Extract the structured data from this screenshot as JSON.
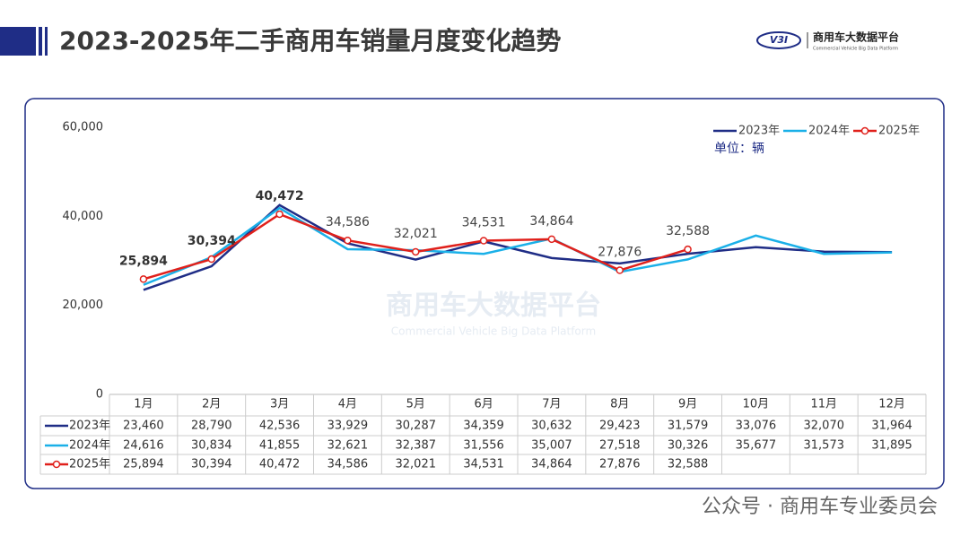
{
  "header": {
    "title": "2023-2025年二手商用车销量月度变化趋势",
    "logo_mark": "V3I",
    "logo_name": "商用车大数据平台",
    "logo_sub": "Commercial Vehicle Big Data Platform"
  },
  "chart_data": {
    "type": "line",
    "unit": "单位：辆",
    "watermark": "商用车大数据平台",
    "watermark_sub": "Commercial Vehicle Big Data Platform",
    "categories": [
      "1月",
      "2月",
      "3月",
      "4月",
      "5月",
      "6月",
      "7月",
      "8月",
      "9月",
      "10月",
      "11月",
      "12月"
    ],
    "series": [
      {
        "name": "2023年",
        "color": "#1f2d86",
        "values": [
          23460,
          28790,
          42536,
          33929,
          30287,
          34359,
          30632,
          29423,
          31579,
          33076,
          32070,
          31964
        ],
        "value_labels": [
          "23,460",
          "28,790",
          "42,536",
          "33,929",
          "30,287",
          "34,359",
          "30,632",
          "29,423",
          "31,579",
          "33,076",
          "32,070",
          "31,964"
        ]
      },
      {
        "name": "2024年",
        "color": "#1ab0e8",
        "values": [
          24616,
          30834,
          41855,
          32621,
          32387,
          31556,
          35007,
          27518,
          30326,
          35677,
          31573,
          31895
        ],
        "value_labels": [
          "24,616",
          "30,834",
          "41,855",
          "32,621",
          "32,387",
          "31,556",
          "35,007",
          "27,518",
          "30,326",
          "35,677",
          "31,573",
          "31,895"
        ]
      },
      {
        "name": "2025年",
        "color": "#e0201b",
        "values": [
          25894,
          30394,
          40472,
          34586,
          32021,
          34531,
          34864,
          27876,
          32588,
          null,
          null,
          null
        ],
        "value_labels": [
          "25,894",
          "30,394",
          "40,472",
          "34,586",
          "32,021",
          "34,531",
          "34,864",
          "27,876",
          "32,588",
          null,
          null,
          null
        ]
      }
    ],
    "ylim": [
      0,
      60000
    ],
    "yticks": [
      0,
      {
        "value": 20000,
        "label": "20,000"
      },
      {
        "value": 40000,
        "label": "40,000"
      },
      {
        "value": 60000,
        "label": "60,000"
      }
    ],
    "legend": "top-right"
  },
  "footer": {
    "text": "公众号 · 商用车专业委员会"
  }
}
